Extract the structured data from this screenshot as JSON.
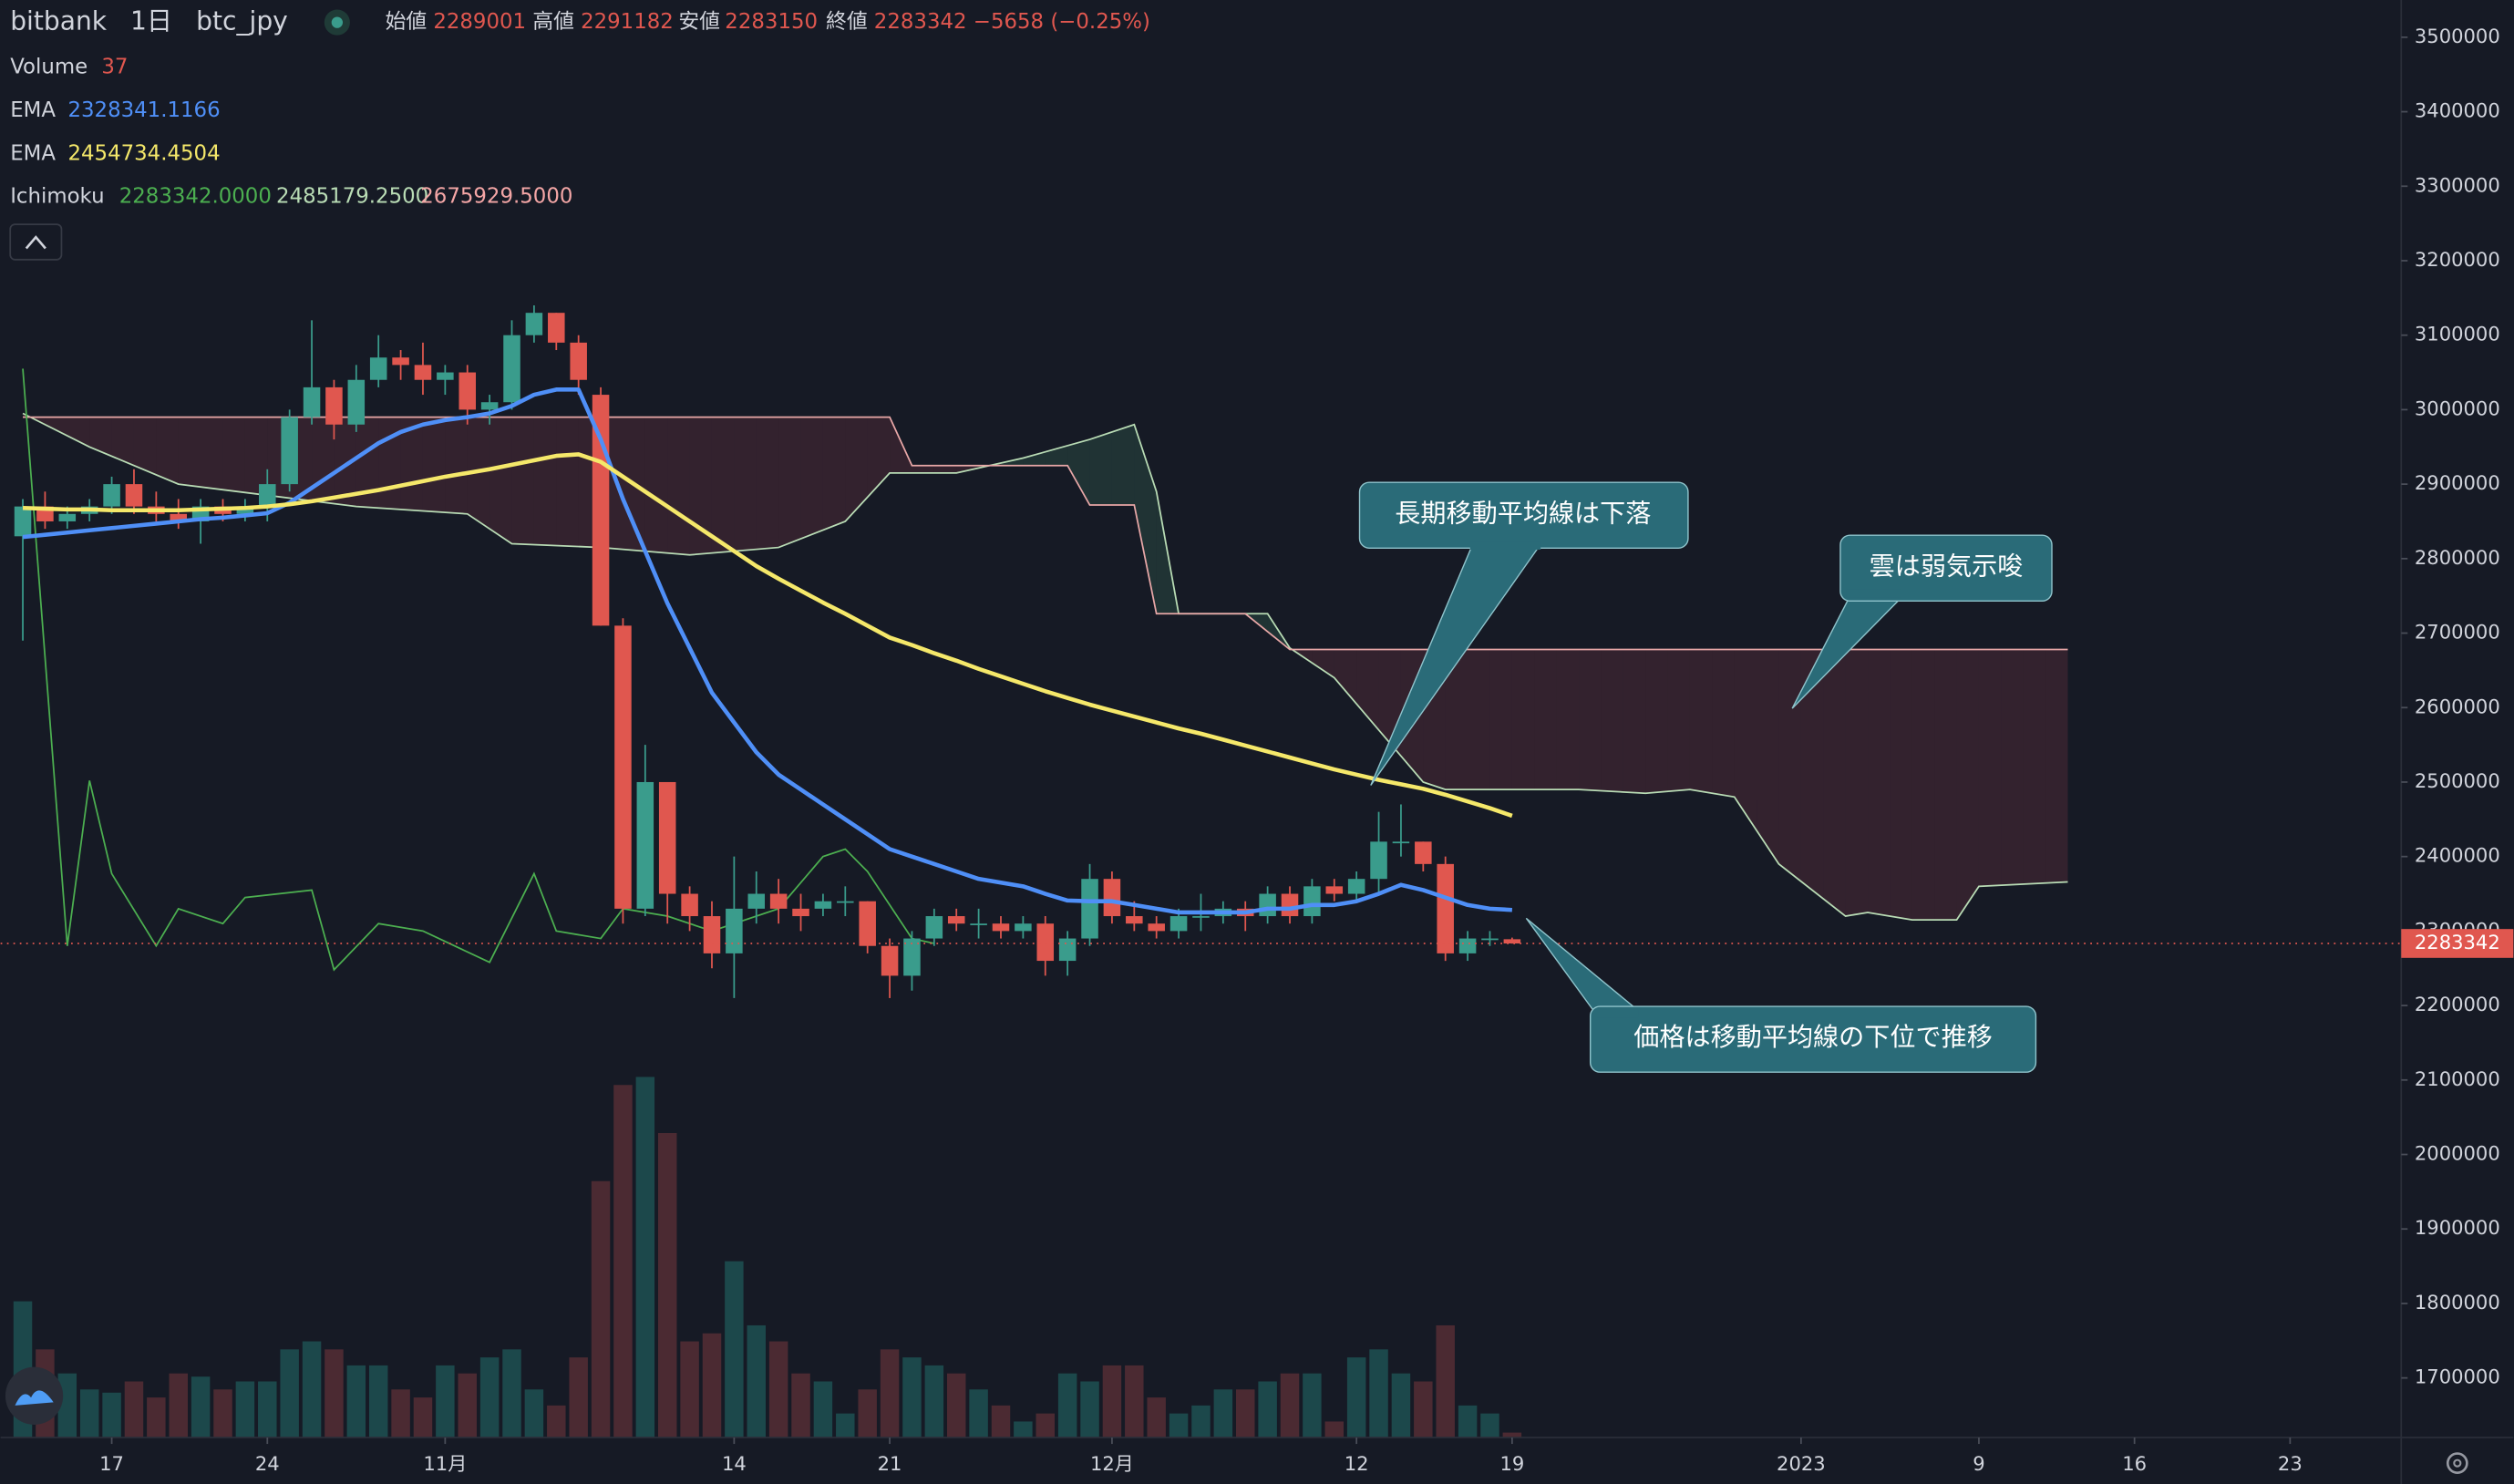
{
  "chart_data": {
    "type": "candlestick",
    "title": "bitbank",
    "interval": "1日",
    "symbol": "btc_jpy",
    "ohlc_legend": [
      {
        "label": "始値",
        "value": "2289001"
      },
      {
        "label": "高値",
        "value": "2291182"
      },
      {
        "label": "安値",
        "value": "2283150"
      },
      {
        "label": "終値",
        "value": "2283342"
      }
    ],
    "change": "−5658 (−0.25%)",
    "up_color": "#3a9c8c",
    "down_color": "#e0574f",
    "volume_up_color": "#1c484b",
    "volume_down_color": "#4b2a32",
    "grid": false,
    "xlim": [
      "2022-10-12",
      "2023-01-28"
    ],
    "ylim": [
      1620000,
      3550000
    ],
    "yticks": [
      1700000,
      1800000,
      1900000,
      2000000,
      2100000,
      2200000,
      2300000,
      2400000,
      2500000,
      2600000,
      2700000,
      2800000,
      2900000,
      3000000,
      3100000,
      3200000,
      3300000,
      3400000,
      3500000
    ],
    "xticks": [
      {
        "value": "2022-10-17",
        "label": "17"
      },
      {
        "value": "2022-10-24",
        "label": "24"
      },
      {
        "value": "2022-11-01",
        "label": "11月"
      },
      {
        "value": "2022-11-14",
        "label": "14"
      },
      {
        "value": "2022-11-21",
        "label": "21"
      },
      {
        "value": "2022-12-01",
        "label": "12月"
      },
      {
        "value": "2022-12-12",
        "label": "12"
      },
      {
        "value": "2022-12-19",
        "label": "19"
      },
      {
        "value": "2023-01-01",
        "label": "2023"
      },
      {
        "value": "2023-01-09",
        "label": "9"
      },
      {
        "value": "2023-01-16",
        "label": "16"
      },
      {
        "value": "2023-01-23",
        "label": "23"
      }
    ],
    "x": [
      "2022-10-13",
      "2022-10-14",
      "2022-10-15",
      "2022-10-16",
      "2022-10-17",
      "2022-10-18",
      "2022-10-19",
      "2022-10-20",
      "2022-10-21",
      "2022-10-22",
      "2022-10-23",
      "2022-10-24",
      "2022-10-25",
      "2022-10-26",
      "2022-10-27",
      "2022-10-28",
      "2022-10-29",
      "2022-10-30",
      "2022-10-31",
      "2022-11-01",
      "2022-11-02",
      "2022-11-03",
      "2022-11-04",
      "2022-11-05",
      "2022-11-06",
      "2022-11-07",
      "2022-11-08",
      "2022-11-09",
      "2022-11-10",
      "2022-11-11",
      "2022-11-12",
      "2022-11-13",
      "2022-11-14",
      "2022-11-15",
      "2022-11-16",
      "2022-11-17",
      "2022-11-18",
      "2022-11-19",
      "2022-11-20",
      "2022-11-21",
      "2022-11-22",
      "2022-11-23",
      "2022-11-24",
      "2022-11-25",
      "2022-11-26",
      "2022-11-27",
      "2022-11-28",
      "2022-11-29",
      "2022-11-30",
      "2022-12-01",
      "2022-12-02",
      "2022-12-03",
      "2022-12-04",
      "2022-12-05",
      "2022-12-06",
      "2022-12-07",
      "2022-12-08",
      "2022-12-09",
      "2022-12-10",
      "2022-12-11",
      "2022-12-12",
      "2022-12-13",
      "2022-12-14",
      "2022-12-15",
      "2022-12-16",
      "2022-12-17",
      "2022-12-18",
      "2022-12-19"
    ],
    "open": [
      2830000,
      2870000,
      2850000,
      2860000,
      2870000,
      2900000,
      2870000,
      2860000,
      2850000,
      2870000,
      2860000,
      2870000,
      2900000,
      2990000,
      3030000,
      2980000,
      3040000,
      3070000,
      3060000,
      3040000,
      3050000,
      3000000,
      3010000,
      3100000,
      3130000,
      3090000,
      3020000,
      2710000,
      2330000,
      2500000,
      2350000,
      2320000,
      2270000,
      2330000,
      2350000,
      2330000,
      2330000,
      2340000,
      2340000,
      2280000,
      2240000,
      2290000,
      2320000,
      2310000,
      2310000,
      2300000,
      2310000,
      2260000,
      2290000,
      2370000,
      2320000,
      2310000,
      2300000,
      2320000,
      2320000,
      2330000,
      2320000,
      2350000,
      2320000,
      2360000,
      2350000,
      2370000,
      2420000,
      2420000,
      2390000,
      2270000,
      2290000,
      2289001
    ],
    "high": [
      2880000,
      2890000,
      2870000,
      2880000,
      2910000,
      2920000,
      2890000,
      2880000,
      2880000,
      2880000,
      2880000,
      2920000,
      3000000,
      3120000,
      3040000,
      3060000,
      3100000,
      3080000,
      3090000,
      3060000,
      3060000,
      3020000,
      3120000,
      3140000,
      3130000,
      3100000,
      3030000,
      2720000,
      2550000,
      2500000,
      2360000,
      2340000,
      2400000,
      2380000,
      2370000,
      2350000,
      2350000,
      2360000,
      2340000,
      2290000,
      2300000,
      2330000,
      2330000,
      2330000,
      2320000,
      2320000,
      2320000,
      2300000,
      2390000,
      2380000,
      2340000,
      2320000,
      2330000,
      2350000,
      2340000,
      2340000,
      2360000,
      2360000,
      2370000,
      2370000,
      2380000,
      2460000,
      2470000,
      2420000,
      2400000,
      2300000,
      2300000,
      2291182
    ],
    "low": [
      2690000,
      2840000,
      2840000,
      2850000,
      2860000,
      2860000,
      2850000,
      2840000,
      2820000,
      2850000,
      2850000,
      2850000,
      2890000,
      2980000,
      2960000,
      2970000,
      3030000,
      3040000,
      3020000,
      3020000,
      2980000,
      2980000,
      3000000,
      3090000,
      3080000,
      3020000,
      2710000,
      2310000,
      2320000,
      2310000,
      2300000,
      2250000,
      2210000,
      2310000,
      2310000,
      2300000,
      2320000,
      2320000,
      2270000,
      2210000,
      2220000,
      2280000,
      2300000,
      2290000,
      2290000,
      2290000,
      2240000,
      2240000,
      2280000,
      2310000,
      2300000,
      2290000,
      2290000,
      2300000,
      2310000,
      2300000,
      2310000,
      2310000,
      2310000,
      2340000,
      2340000,
      2350000,
      2400000,
      2380000,
      2260000,
      2260000,
      2280000,
      2283150
    ],
    "close": [
      2870000,
      2850000,
      2860000,
      2870000,
      2900000,
      2870000,
      2860000,
      2850000,
      2870000,
      2860000,
      2870000,
      2900000,
      2990000,
      3030000,
      2980000,
      3040000,
      3070000,
      3060000,
      3040000,
      3050000,
      3000000,
      3010000,
      3100000,
      3130000,
      3090000,
      3040000,
      2710000,
      2330000,
      2500000,
      2350000,
      2320000,
      2270000,
      2330000,
      2350000,
      2330000,
      2320000,
      2340000,
      2340000,
      2280000,
      2240000,
      2290000,
      2320000,
      2310000,
      2310000,
      2300000,
      2310000,
      2260000,
      2290000,
      2370000,
      2320000,
      2310000,
      2300000,
      2320000,
      2320000,
      2330000,
      2320000,
      2350000,
      2320000,
      2360000,
      2350000,
      2370000,
      2420000,
      2420000,
      2390000,
      2270000,
      2290000,
      2290000,
      2283342
    ],
    "volume": {
      "name": "Volume",
      "legend_value": "37",
      "values": [
        1020,
        660,
        480,
        360,
        336,
        420,
        300,
        480,
        456,
        360,
        420,
        420,
        660,
        720,
        660,
        540,
        540,
        360,
        300,
        540,
        480,
        600,
        660,
        360,
        240,
        600,
        1920,
        2640,
        2700,
        2280,
        720,
        780,
        1320,
        840,
        720,
        480,
        420,
        180,
        360,
        660,
        600,
        540,
        480,
        360,
        240,
        120,
        180,
        480,
        420,
        540,
        540,
        300,
        180,
        240,
        360,
        360,
        420,
        480,
        480,
        120,
        600,
        660,
        480,
        420,
        840,
        240,
        180,
        37
      ]
    },
    "ema": [
      {
        "name": "EMA",
        "color": "#4f8ff7",
        "legend_value": "2328341.1166",
        "values": [
          2829000,
          2832000,
          2835000,
          2838000,
          2841000,
          2844000,
          2847000,
          2850000,
          2853000,
          2855000,
          2858000,
          2861000,
          2875000,
          2895000,
          2915000,
          2935000,
          2955000,
          2970000,
          2980000,
          2986000,
          2990000,
          2995000,
          3005000,
          3020000,
          3027000,
          3027000,
          2960000,
          2880000,
          2810000,
          2740000,
          2680000,
          2620000,
          2580000,
          2540000,
          2510000,
          2490000,
          2470000,
          2450000,
          2430000,
          2410000,
          2400000,
          2390000,
          2380000,
          2370000,
          2365000,
          2360000,
          2350000,
          2341000,
          2340000,
          2340000,
          2335000,
          2330000,
          2325000,
          2325000,
          2325000,
          2325000,
          2330000,
          2330000,
          2335000,
          2335000,
          2340000,
          2350000,
          2362000,
          2355000,
          2345000,
          2335000,
          2330000,
          2328341
        ]
      },
      {
        "name": "EMA",
        "color": "#f5e86a",
        "legend_value": "2454734.4504",
        "values": [
          2868000,
          2867000,
          2866000,
          2866000,
          2865000,
          2865000,
          2865000,
          2865000,
          2866000,
          2867000,
          2868000,
          2870000,
          2873000,
          2877000,
          2882000,
          2887000,
          2892000,
          2898000,
          2904000,
          2910000,
          2915000,
          2920000,
          2926000,
          2932000,
          2938000,
          2940000,
          2930000,
          2910000,
          2890000,
          2870000,
          2850000,
          2830000,
          2810000,
          2790000,
          2773000,
          2757000,
          2741000,
          2726000,
          2710000,
          2694000,
          2684000,
          2673000,
          2663000,
          2652000,
          2642000,
          2632000,
          2622000,
          2613000,
          2604000,
          2596000,
          2588000,
          2580000,
          2572000,
          2565000,
          2557000,
          2549000,
          2541000,
          2533000,
          2525000,
          2517000,
          2510000,
          2503000,
          2497000,
          2491000,
          2483000,
          2474000,
          2465000,
          2454734
        ]
      }
    ],
    "ichimoku": [
      {
        "name": "Ichimoku",
        "color": "#b9dcb5",
        "legend_value": "2485179.2500",
        "x": [
          "2022-10-13",
          "2022-10-16",
          "2022-10-20",
          "2022-10-28",
          "2022-11-02",
          "2022-11-04",
          "2022-11-08",
          "2022-11-12",
          "2022-11-16",
          "2022-11-19",
          "2022-11-21",
          "2022-11-24",
          "2022-11-27",
          "2022-11-30",
          "2022-12-02",
          "2022-12-03",
          "2022-12-04",
          "2022-12-08",
          "2022-12-09",
          "2022-12-11",
          "2022-12-13",
          "2022-12-15",
          "2022-12-16",
          "2022-12-22",
          "2022-12-25",
          "2022-12-27",
          "2022-12-29",
          "2022-12-31",
          "2023-01-03",
          "2023-01-04",
          "2023-01-06",
          "2023-01-08",
          "2023-01-09",
          "2023-01-13"
        ],
        "values": [
          2995000,
          2950000,
          2900000,
          2870000,
          2860000,
          2820000,
          2815000,
          2805000,
          2815000,
          2850000,
          2915000,
          2915000,
          2935000,
          2960000,
          2980000,
          2890000,
          2726000,
          2726000,
          2680000,
          2640000,
          2570000,
          2500000,
          2490000,
          2490000,
          2485000,
          2490000,
          2480000,
          2390000,
          2320000,
          2325000,
          2315000,
          2315000,
          2360000,
          2366000
        ]
      },
      {
        "name": "Ichimoku",
        "color": "#e8a7a7",
        "legend_value": "2675929.5000",
        "x": [
          "2022-10-13",
          "2022-11-21",
          "2022-11-22",
          "2022-11-29",
          "2022-11-30",
          "2022-12-02",
          "2022-12-03",
          "2022-12-07",
          "2022-12-09",
          "2023-01-13"
        ],
        "values": [
          2990000,
          2990000,
          2925000,
          2925000,
          2872000,
          2872000,
          2726000,
          2726000,
          2678000,
          2678000
        ]
      },
      {
        "name": "Ichimoku",
        "color": "#4caf50",
        "legend_value": "2283342.0000",
        "x": [
          "2022-10-13",
          "2022-10-15",
          "2022-10-16",
          "2022-10-17",
          "2022-10-19",
          "2022-10-20",
          "2022-10-22",
          "2022-10-23",
          "2022-10-26",
          "2022-10-27",
          "2022-10-29",
          "2022-10-31",
          "2022-11-03",
          "2022-11-05",
          "2022-11-06",
          "2022-11-08",
          "2022-11-09",
          "2022-11-11",
          "2022-11-13",
          "2022-11-16",
          "2022-11-18",
          "2022-11-19",
          "2022-11-20",
          "2022-11-22",
          "2022-11-23"
        ],
        "values": [
          3055000,
          2280000,
          2502000,
          2377000,
          2280000,
          2330000,
          2310000,
          2345000,
          2355000,
          2248000,
          2310000,
          2300000,
          2258000,
          2377000,
          2300000,
          2290000,
          2330000,
          2320000,
          2300000,
          2330000,
          2400000,
          2410000,
          2380000,
          2290000,
          2283342
        ]
      }
    ],
    "annotations": [
      "長期移動平均線は下落",
      "雲は弱気示唆",
      "価格は移動平均線の下位で推移"
    ]
  }
}
